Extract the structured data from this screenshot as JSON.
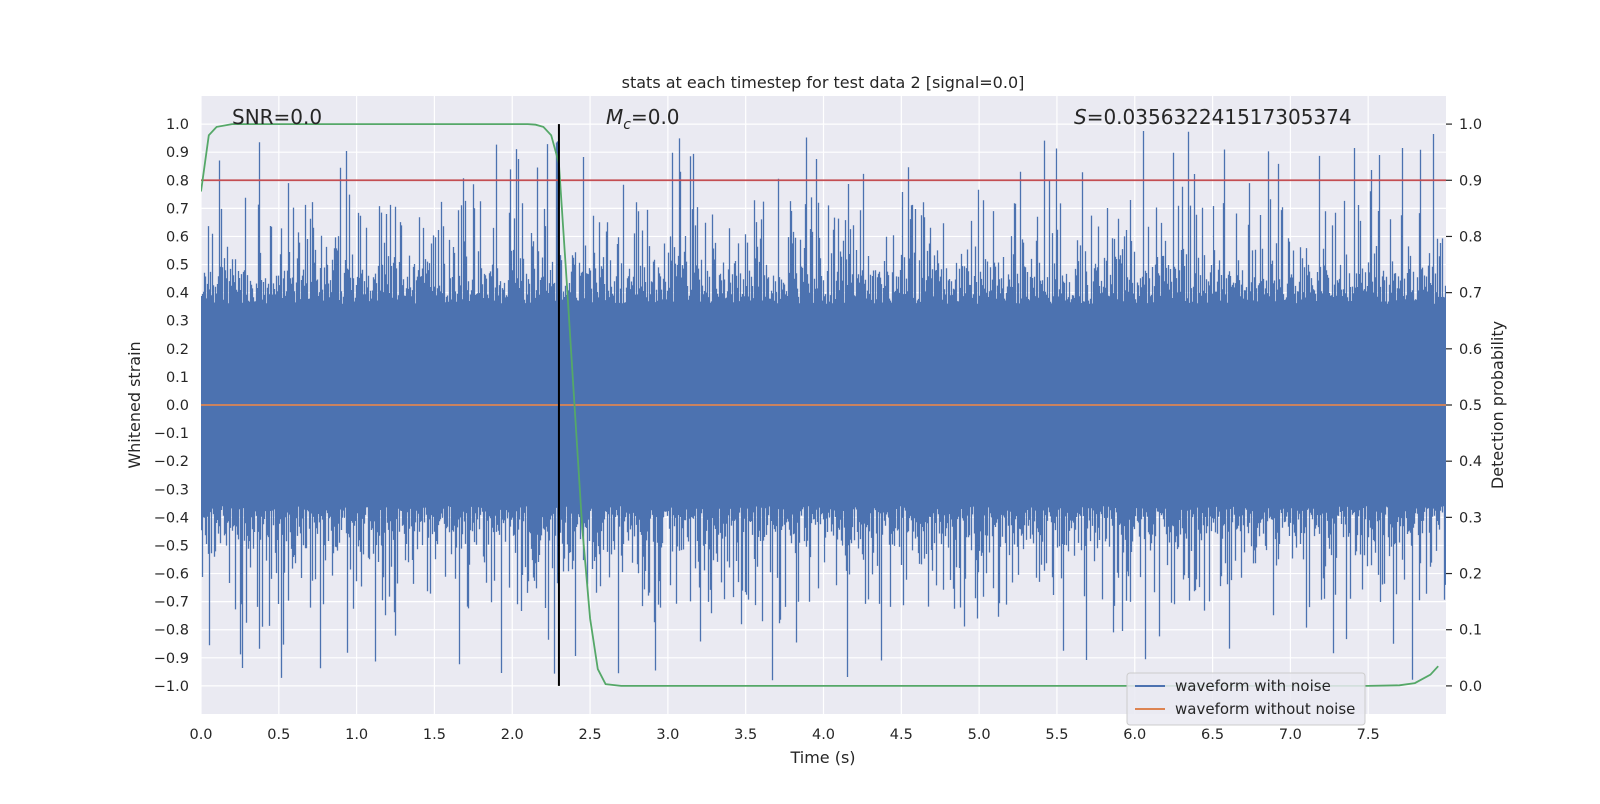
{
  "chart_data": {
    "type": "line",
    "title": "stats at each timestep for test data 2 [signal=0.0]",
    "xlabel": "Time (s)",
    "ylabel_left": "Whitened strain",
    "ylabel_right": "Detection probability",
    "xlim": [
      0.0,
      8.0
    ],
    "ylim_left": [
      -1.1,
      1.1
    ],
    "ylim_right": [
      -0.05,
      1.05
    ],
    "x_ticks": [
      "0.0",
      "0.5",
      "1.0",
      "1.5",
      "2.0",
      "2.5",
      "3.0",
      "3.5",
      "4.0",
      "4.5",
      "5.0",
      "5.5",
      "6.0",
      "6.5",
      "7.0",
      "7.5"
    ],
    "x_tick_values": [
      0.0,
      0.5,
      1.0,
      1.5,
      2.0,
      2.5,
      3.0,
      3.5,
      4.0,
      4.5,
      5.0,
      5.5,
      6.0,
      6.5,
      7.0,
      7.5
    ],
    "y_left_ticks": [
      "1.0",
      "0.9",
      "0.8",
      "0.7",
      "0.6",
      "0.5",
      "0.4",
      "0.3",
      "0.2",
      "0.1",
      "0.0",
      "−0.1",
      "−0.2",
      "−0.3",
      "−0.4",
      "−0.5",
      "−0.6",
      "−0.7",
      "−0.8",
      "−0.9",
      "−1.0"
    ],
    "y_left_tick_values": [
      1.0,
      0.9,
      0.8,
      0.7,
      0.6,
      0.5,
      0.4,
      0.3,
      0.2,
      0.1,
      0.0,
      -0.1,
      -0.2,
      -0.3,
      -0.4,
      -0.5,
      -0.6,
      -0.7,
      -0.8,
      -0.9,
      -1.0
    ],
    "y_right_ticks": [
      "1.0",
      "0.9",
      "0.8",
      "0.7",
      "0.6",
      "0.5",
      "0.4",
      "0.3",
      "0.2",
      "0.1",
      "0.0"
    ],
    "y_right_tick_values": [
      1.0,
      0.9,
      0.8,
      0.7,
      0.6,
      0.5,
      0.4,
      0.3,
      0.2,
      0.1,
      0.0
    ],
    "annotations": {
      "snr": "SNR=0.0",
      "mc_symbol": "M",
      "mc_sub": "c",
      "mc_value": "=0.0",
      "s_symbol": "S",
      "s_value": "=0.035632241517305374"
    },
    "legend_placement": "lower-right",
    "grid": true,
    "series": [
      {
        "name": "waveform with noise",
        "color": "#4c72b0",
        "axis": "left",
        "description_of_values": "whitened noise, roughly symmetric around 0, bulk amplitude within ±0.4, peaks reaching about ±1.0"
      },
      {
        "name": "waveform without noise",
        "color": "#dd8452",
        "axis": "left",
        "x": [
          0.0,
          8.0
        ],
        "y": [
          0.0,
          0.0
        ]
      },
      {
        "color": "#55a868",
        "axis": "right",
        "x": [
          0.0,
          0.05,
          0.1,
          0.2,
          0.5,
          1.0,
          1.5,
          2.0,
          2.1,
          2.15,
          2.2,
          2.25,
          2.3,
          2.35,
          2.4,
          2.45,
          2.5,
          2.55,
          2.6,
          2.7,
          3.0,
          4.0,
          5.0,
          6.0,
          7.0,
          7.5,
          7.7,
          7.8,
          7.9,
          7.95
        ],
        "y": [
          0.88,
          0.98,
          0.995,
          1.0,
          1.0,
          1.0,
          1.0,
          1.0,
          1.0,
          0.999,
          0.995,
          0.98,
          0.93,
          0.72,
          0.5,
          0.28,
          0.12,
          0.03,
          0.003,
          0.0,
          0.0,
          0.0,
          0.0,
          0.0,
          0.0,
          0.0,
          0.001,
          0.005,
          0.02,
          0.035
        ]
      }
    ],
    "threshold_line": {
      "axis": "right",
      "value": 0.9,
      "color": "#c44e52"
    },
    "marker_line": {
      "x": 2.3,
      "color": "#000000"
    }
  },
  "colors": {
    "plot_background": "#eaeaf2",
    "grid": "#ffffff"
  }
}
